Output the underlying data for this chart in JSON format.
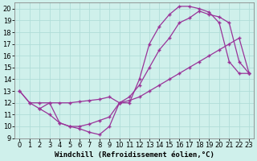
{
  "background_color": "#cff0eb",
  "grid_color": "#b0ddd8",
  "line_color": "#993399",
  "marker": "+",
  "markersize": 3.5,
  "linewidth": 0.9,
  "markeredgewidth": 1.0,
  "xlabel": "Windchill (Refroidissement éolien,°C)",
  "xlabel_fontsize": 6.5,
  "tick_fontsize": 6.0,
  "xlim": [
    -0.5,
    23.5
  ],
  "ylim": [
    9,
    20.5
  ],
  "xticks": [
    0,
    1,
    2,
    3,
    4,
    5,
    6,
    7,
    8,
    9,
    10,
    11,
    12,
    13,
    14,
    15,
    16,
    17,
    18,
    19,
    20,
    21,
    22,
    23
  ],
  "yticks": [
    9,
    10,
    11,
    12,
    13,
    14,
    15,
    16,
    17,
    18,
    19,
    20
  ],
  "line1_x": [
    0,
    1,
    2,
    3,
    4,
    5,
    6,
    7,
    8,
    9,
    10,
    11,
    12,
    13,
    14,
    15,
    16,
    17,
    18,
    19,
    20,
    21,
    22,
    23
  ],
  "line1_y": [
    13,
    12,
    12,
    12,
    10.3,
    10.0,
    9.8,
    9.5,
    9.3,
    10.0,
    12,
    12,
    14,
    17.0,
    18.5,
    19.5,
    20.2,
    20.2,
    20.0,
    19.7,
    18.8,
    15.5,
    14.5,
    14.5
  ],
  "line2_x": [
    0,
    1,
    2,
    3,
    4,
    5,
    6,
    7,
    8,
    9,
    10,
    11,
    12,
    13,
    14,
    15,
    16,
    17,
    18,
    19,
    20,
    21,
    22,
    23
  ],
  "line2_y": [
    13,
    12,
    11.5,
    12,
    12,
    12,
    12.1,
    12.2,
    12.3,
    12.5,
    12.0,
    12.5,
    13.5,
    15,
    16.5,
    17.5,
    18.8,
    19.2,
    19.8,
    19.5,
    19.3,
    18.8,
    15.5,
    14.5
  ],
  "line3_x": [
    2,
    3,
    4,
    5,
    6,
    7,
    8,
    9,
    10,
    11,
    12,
    13,
    14,
    15,
    16,
    17,
    18,
    19,
    20,
    21,
    22,
    23
  ],
  "line3_y": [
    11.5,
    11,
    10.3,
    10.0,
    10.0,
    10.2,
    10.5,
    10.8,
    12,
    12.2,
    12.5,
    13,
    13.5,
    14,
    14.5,
    15,
    15.5,
    16,
    16.5,
    17,
    17.5,
    14.5
  ]
}
